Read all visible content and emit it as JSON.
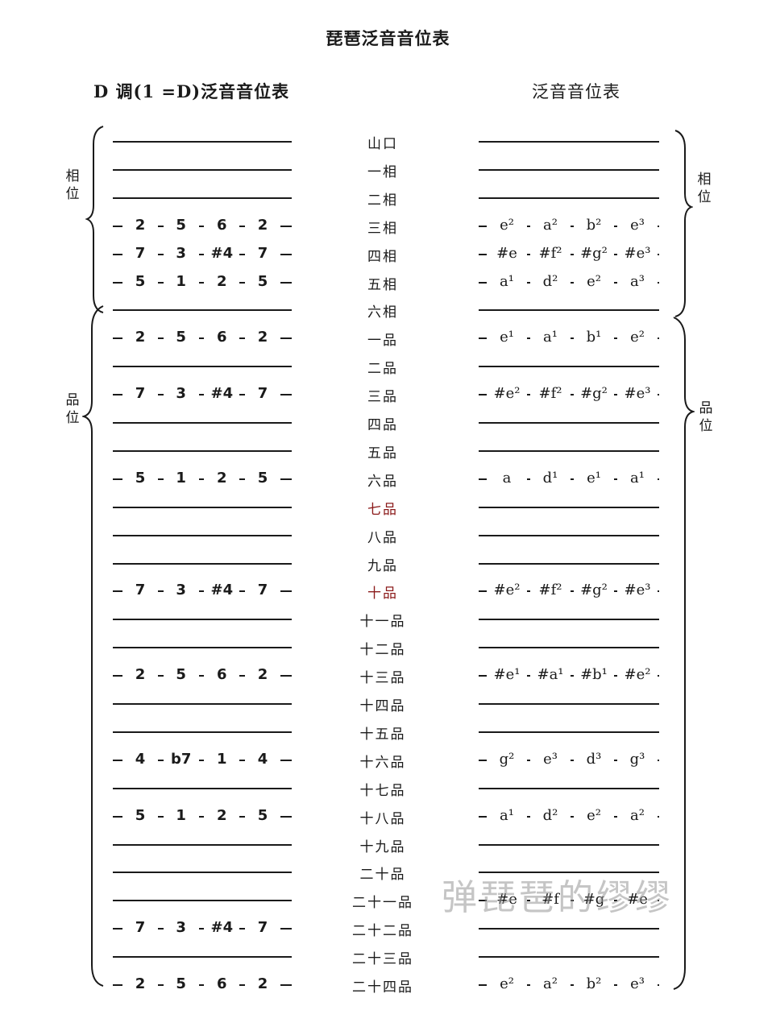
{
  "title": "琵琶泛音音位表",
  "left_subtitle": "D 调(1 =D)泛音音位表",
  "right_subtitle": "泛音音位表",
  "side_labels": {
    "xiang": "相位",
    "pin": "品位"
  },
  "watermark": "弹琵琶的缪缪",
  "rows": [
    {
      "pos": "山口",
      "left": [],
      "right": []
    },
    {
      "pos": "一相",
      "left": [],
      "right": []
    },
    {
      "pos": "二相",
      "left": [],
      "right": []
    },
    {
      "pos": "三相",
      "left": [
        "2",
        "5",
        "6",
        "2"
      ],
      "right": [
        "e²",
        "a²",
        "b²",
        "e³"
      ]
    },
    {
      "pos": "四相",
      "left": [
        "7",
        "3",
        "#4",
        "7"
      ],
      "right": [
        "#e",
        "#f²",
        "#g²",
        "#e³"
      ]
    },
    {
      "pos": "五相",
      "left": [
        "5",
        "1",
        "2",
        "5"
      ],
      "right": [
        "a¹",
        "d²",
        "e²",
        "a³"
      ]
    },
    {
      "pos": "六相",
      "left": [],
      "right": []
    },
    {
      "pos": "一品",
      "left": [
        "2",
        "5",
        "6",
        "2"
      ],
      "right": [
        "e¹",
        "a¹",
        "b¹",
        "e²"
      ]
    },
    {
      "pos": "二品",
      "left": [],
      "right": []
    },
    {
      "pos": "三品",
      "left": [
        "7",
        "3",
        "#4",
        "7"
      ],
      "right": [
        "#e²",
        "#f²",
        "#g²",
        "#e³"
      ]
    },
    {
      "pos": "四品",
      "left": [],
      "right": []
    },
    {
      "pos": "五品",
      "left": [],
      "right": []
    },
    {
      "pos": "六品",
      "left": [
        "5",
        "1",
        "2",
        "5"
      ],
      "right": [
        "a",
        "d¹",
        "e¹",
        "a¹"
      ]
    },
    {
      "pos": "七品",
      "left": [],
      "right": [],
      "red": true
    },
    {
      "pos": "八品",
      "left": [],
      "right": []
    },
    {
      "pos": "九品",
      "left": [],
      "right": []
    },
    {
      "pos": "十品",
      "left": [
        "7",
        "3",
        "#4",
        "7"
      ],
      "right": [
        "#e²",
        "#f²",
        "#g²",
        "#e³"
      ],
      "red": true
    },
    {
      "pos": "十一品",
      "left": [],
      "right": []
    },
    {
      "pos": "十二品",
      "left": [],
      "right": []
    },
    {
      "pos": "十三品",
      "left": [
        "2",
        "5",
        "6",
        "2"
      ],
      "right": [
        "#e¹",
        "#a¹",
        "#b¹",
        "#e²"
      ]
    },
    {
      "pos": "十四品",
      "left": [],
      "right": []
    },
    {
      "pos": "十五品",
      "left": [],
      "right": []
    },
    {
      "pos": "十六品",
      "left": [
        "4",
        "b7",
        "1",
        "4"
      ],
      "right": [
        "g²",
        "e³",
        "d³",
        "g³"
      ]
    },
    {
      "pos": "十七品",
      "left": [],
      "right": []
    },
    {
      "pos": "十八品",
      "left": [
        "5",
        "1",
        "2",
        "5"
      ],
      "right": [
        "a¹",
        "d²",
        "e²",
        "a²"
      ]
    },
    {
      "pos": "十九品",
      "left": [],
      "right": []
    },
    {
      "pos": "二十品",
      "left": [],
      "right": []
    },
    {
      "pos": "二十一品",
      "left": [],
      "right": [
        "#e",
        "#f",
        "#g",
        "#e"
      ]
    },
    {
      "pos": "二十二品",
      "left": [
        "7",
        "3",
        "#4",
        "7"
      ],
      "right": []
    },
    {
      "pos": "二十三品",
      "left": [],
      "right": []
    },
    {
      "pos": "二十四品",
      "left": [
        "2",
        "5",
        "6",
        "2"
      ],
      "right": [
        "e²",
        "a²",
        "b²",
        "e³"
      ]
    }
  ]
}
